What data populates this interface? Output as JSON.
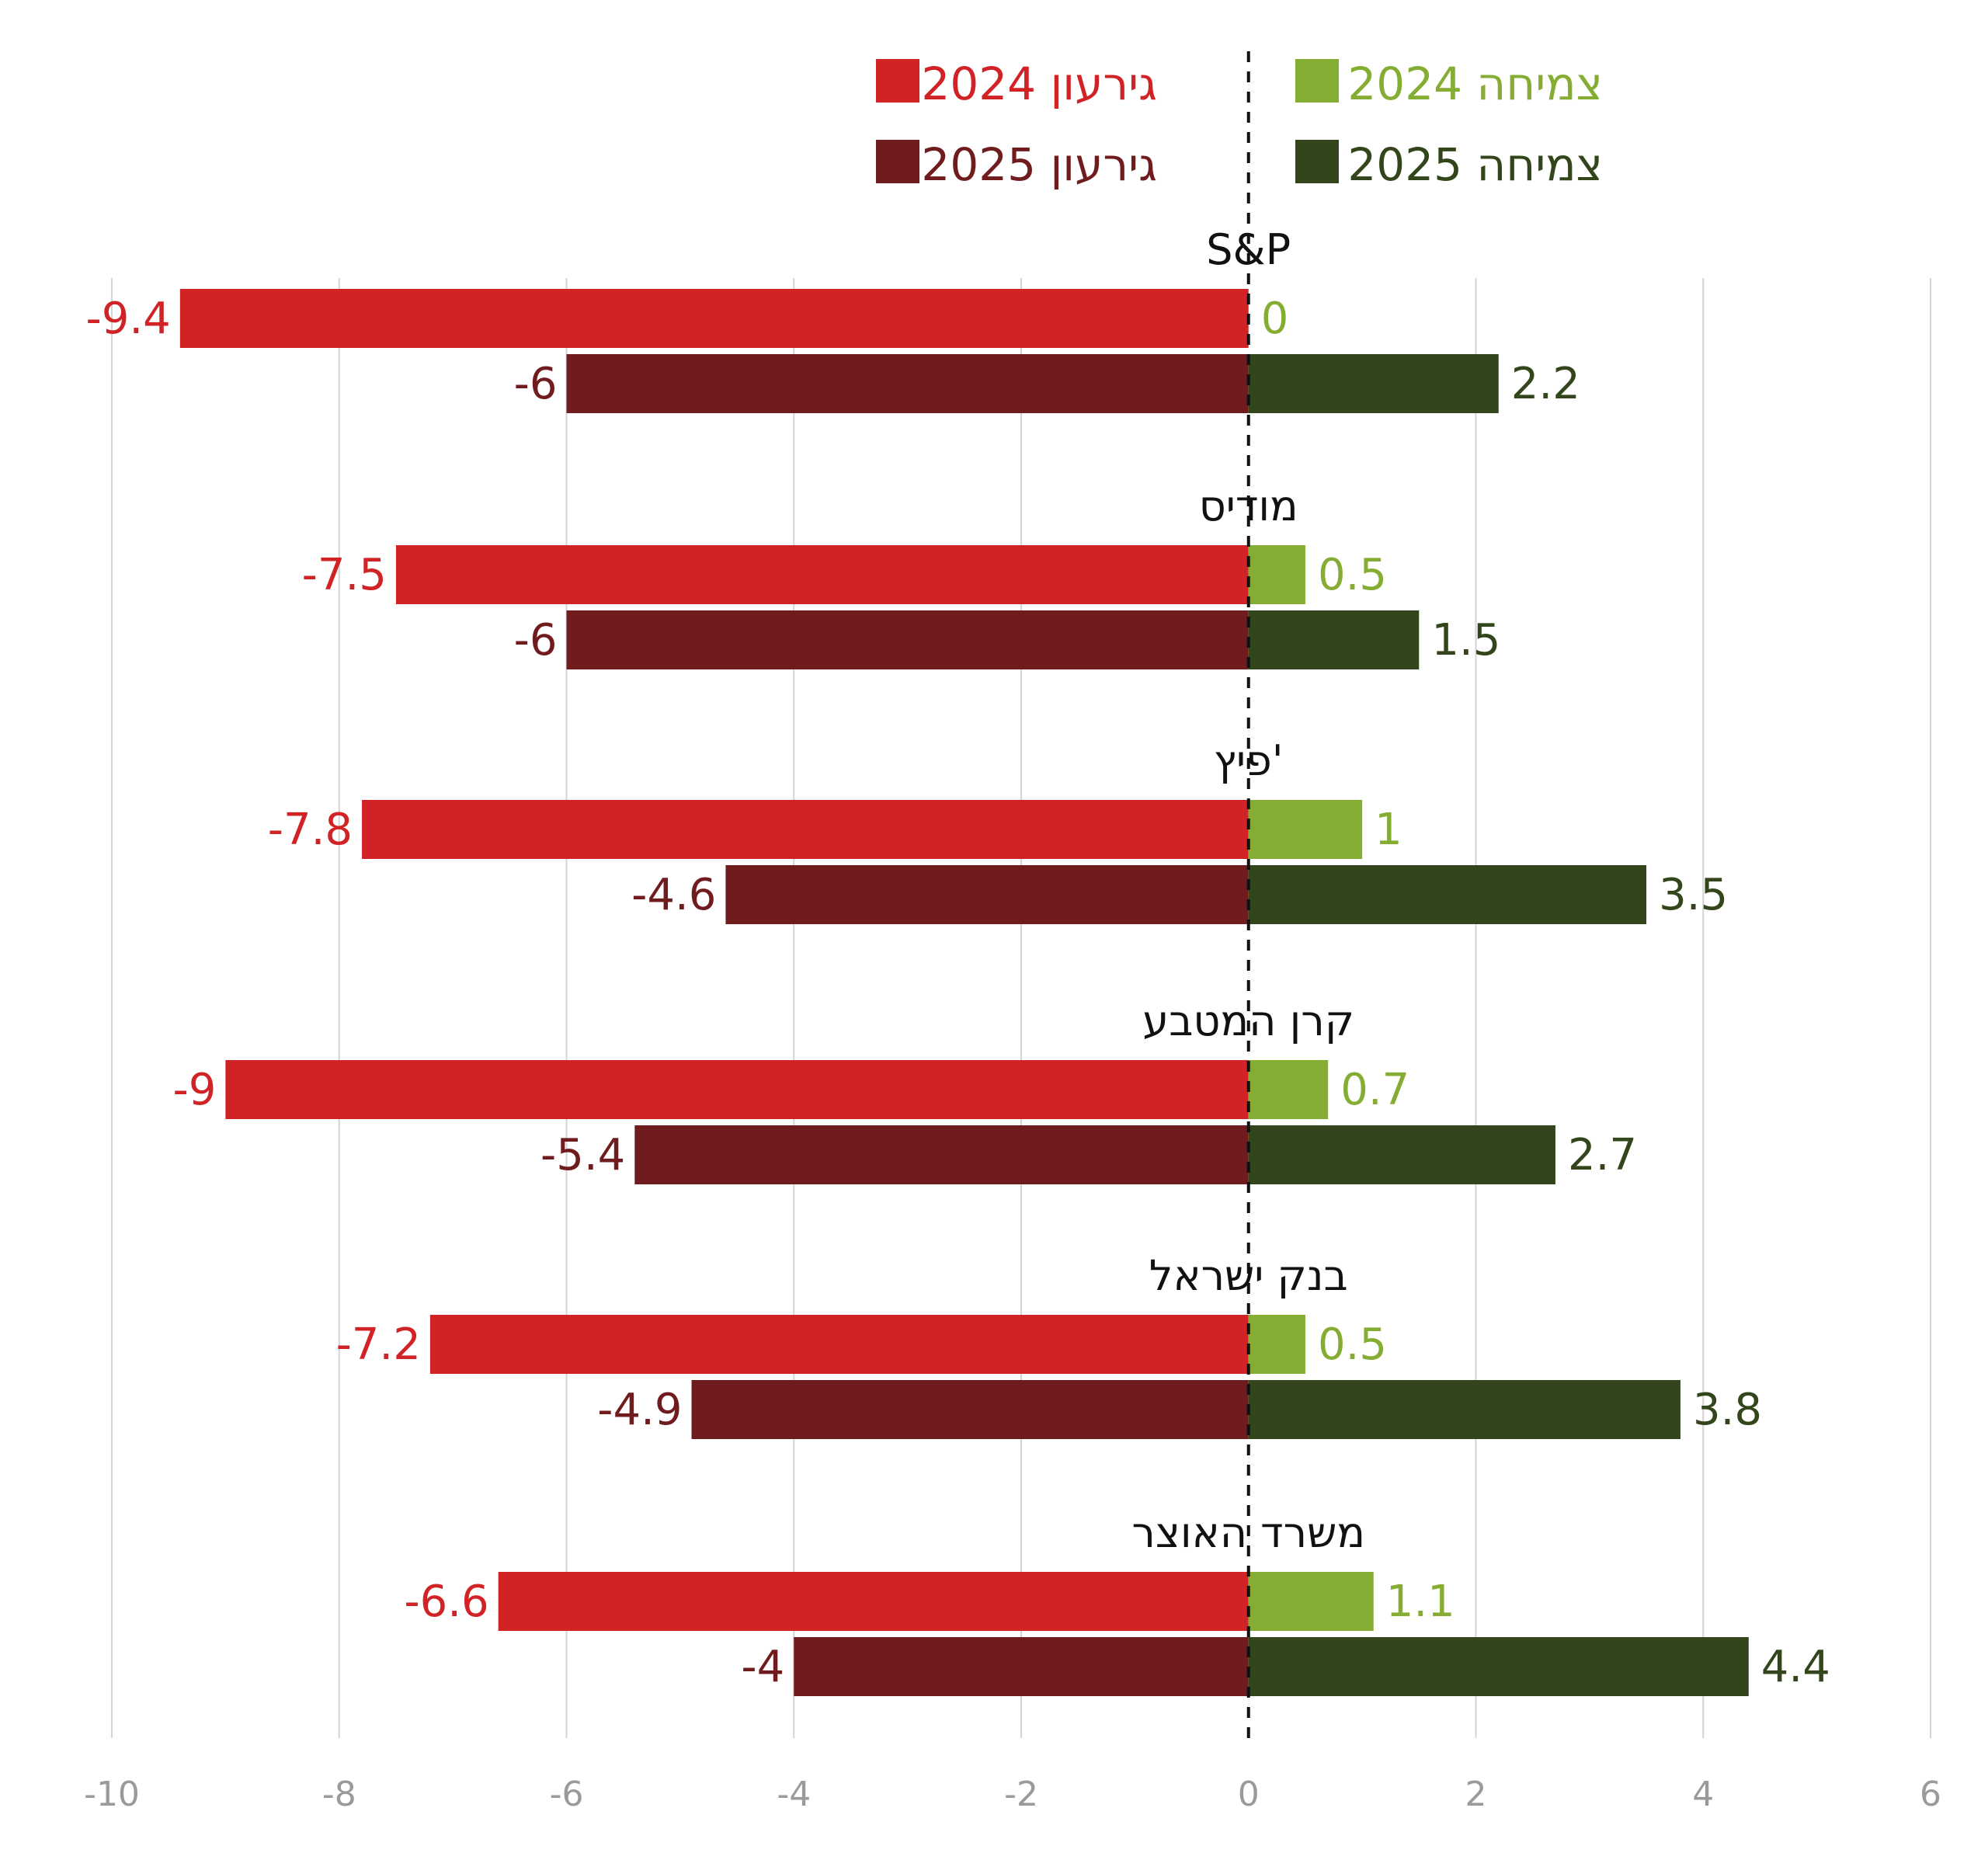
{
  "chart_data": {
    "type": "bar",
    "orientation": "horizontal",
    "xlim": [
      -10,
      6
    ],
    "x_ticks": [
      "-10",
      "-8",
      "-6",
      "-4",
      "-2",
      "0",
      "2",
      "4",
      "6"
    ],
    "grid": true,
    "legend_position": "top",
    "categories": [
      "S&P",
      "מודיס",
      "פיץ'",
      "קרן המטבע",
      "בנק ישראל",
      "משרד האוצר"
    ],
    "series": [
      {
        "name": "גירעון 2024",
        "color": "#d12226",
        "values": [
          -9.4,
          -7.5,
          -7.8,
          -9,
          -7.2,
          -6.6
        ],
        "labels": [
          "-9.4",
          "-7.5",
          "-7.8",
          "-9",
          "-7.2",
          "-6.6"
        ]
      },
      {
        "name": "גירעון 2025",
        "color": "#701c1f",
        "values": [
          -6,
          -6,
          -4.6,
          -5.4,
          -4.9,
          -4
        ],
        "labels": [
          "-6",
          "-6",
          "-4.6",
          "-5.4",
          "-4.9",
          "-4"
        ]
      },
      {
        "name": "צמיחה 2024",
        "color": "#86ad33",
        "values": [
          0,
          0.5,
          1,
          0.7,
          0.5,
          1.1
        ],
        "labels": [
          "0",
          "0.5",
          "1",
          "0.7",
          "0.5",
          "1.1"
        ]
      },
      {
        "name": "צמיחה 2025",
        "color": "#33461b",
        "values": [
          2.2,
          1.5,
          3.5,
          2.7,
          3.8,
          4.4
        ],
        "labels": [
          "2.2",
          "1.5",
          "3.5",
          "2.7",
          "3.8",
          "4.4"
        ]
      }
    ]
  }
}
